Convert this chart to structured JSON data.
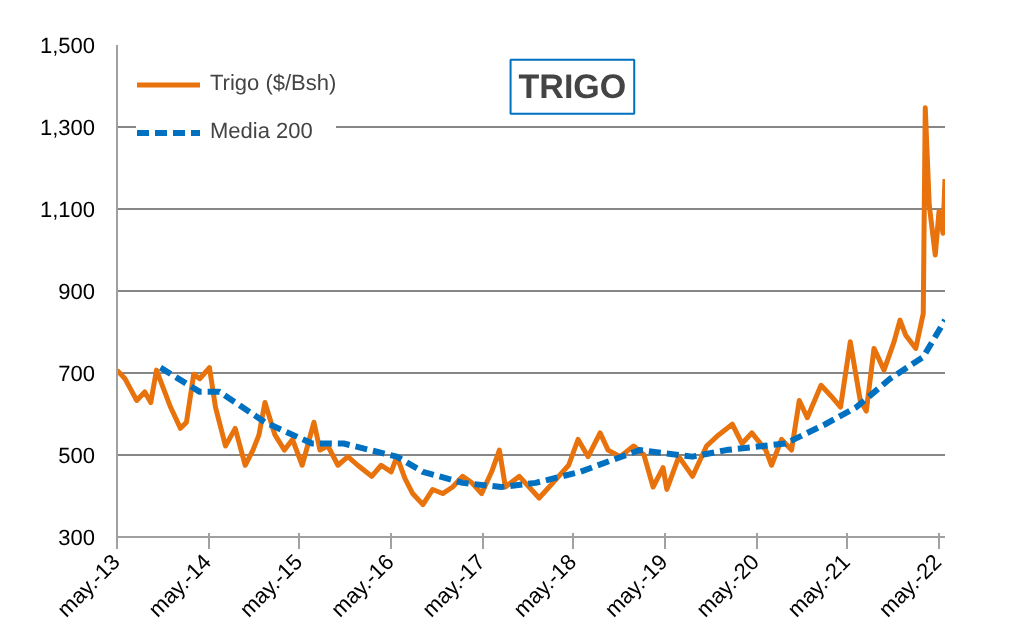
{
  "chart_data": {
    "type": "line",
    "title": "TRIGO",
    "xlim": [
      "2013-05-01",
      "2022-05-27"
    ],
    "xticks": [
      {
        "value": "2013-05-01",
        "label": "may.-13"
      },
      {
        "value": "2014-05-01",
        "label": "may.-14"
      },
      {
        "value": "2015-05-01",
        "label": "may.-15"
      },
      {
        "value": "2016-05-01",
        "label": "may.-16"
      },
      {
        "value": "2017-05-01",
        "label": "may.-17"
      },
      {
        "value": "2018-05-01",
        "label": "may.-18"
      },
      {
        "value": "2019-05-01",
        "label": "may.-19"
      },
      {
        "value": "2020-05-01",
        "label": "may.-20"
      },
      {
        "value": "2021-05-01",
        "label": "may.-21"
      },
      {
        "value": "2022-05-01",
        "label": "may.-22"
      }
    ],
    "ylim": [
      300,
      1500
    ],
    "yticks": [
      300,
      500,
      700,
      900,
      {
        "value": 1100,
        "label": "1,100"
      },
      {
        "value": 1300,
        "label": "1,300"
      },
      {
        "value": 1500,
        "label": "1,500"
      }
    ],
    "grid": "y",
    "legend": "top left",
    "series": [
      {
        "name": "Trigo ($/Bsh)",
        "color": "#e8720c",
        "line_style": "solid",
        "x": [
          "2013-05-01",
          "2013-06-02",
          "2013-06-25",
          "2013-07-19",
          "2013-08-20",
          "2013-09-13",
          "2013-10-06",
          "2013-11-08",
          "2013-12-01",
          "2014-01-10",
          "2014-02-03",
          "2014-03-04",
          "2014-03-28",
          "2014-05-06",
          "2014-05-30",
          "2014-07-09",
          "2014-08-17",
          "2014-09-26",
          "2014-10-27",
          "2014-11-20",
          "2014-12-14",
          "2015-01-23",
          "2015-03-02",
          "2015-04-03",
          "2015-05-12",
          "2015-06-05",
          "2015-06-28",
          "2015-07-22",
          "2015-08-23",
          "2015-10-02",
          "2015-11-11",
          "2015-12-20",
          "2016-02-14",
          "2016-03-23",
          "2016-05-02",
          "2016-05-25",
          "2016-06-26",
          "2016-07-27",
          "2016-09-06",
          "2016-10-15",
          "2016-11-24",
          "2017-01-03",
          "2017-02-12",
          "2017-03-21",
          "2017-04-29",
          "2017-06-08",
          "2017-07-09",
          "2017-08-02",
          "2017-09-27",
          "2017-12-15",
          "2018-01-24",
          "2018-03-03",
          "2018-04-12",
          "2018-05-20",
          "2018-06-29",
          "2018-08-16",
          "2018-09-17",
          "2018-11-04",
          "2018-12-28",
          "2019-02-07",
          "2019-03-16",
          "2019-04-25",
          "2019-05-10",
          "2019-06-27",
          "2019-08-21",
          "2019-10-16",
          "2019-12-03",
          "2020-01-27",
          "2020-03-06",
          "2020-04-14",
          "2020-06-09",
          "2020-07-02",
          "2020-08-11",
          "2020-09-20",
          "2020-10-21",
          "2020-11-22",
          "2021-01-16",
          "2021-02-25",
          "2021-04-04",
          "2021-05-13",
          "2021-06-22",
          "2021-07-16",
          "2021-08-16",
          "2021-09-25",
          "2021-11-04",
          "2021-11-28",
          "2021-12-21",
          "2022-01-30",
          "2022-03-01",
          "2022-03-09",
          "2022-03-25",
          "2022-04-18",
          "2022-05-03",
          "2022-05-19",
          "2022-05-27"
        ],
        "values": [
          707,
          686,
          660,
          633,
          654,
          628,
          707,
          654,
          617,
          565,
          580,
          697,
          686,
          713,
          617,
          522,
          565,
          475,
          512,
          549,
          628,
          549,
          512,
          538,
          475,
          528,
          580,
          512,
          522,
          475,
          496,
          475,
          448,
          475,
          459,
          496,
          443,
          406,
          379,
          416,
          406,
          422,
          448,
          432,
          406,
          459,
          512,
          422,
          448,
          395,
          422,
          448,
          475,
          538,
          496,
          554,
          512,
          496,
          522,
          501,
          422,
          469,
          416,
          496,
          448,
          522,
          549,
          575,
          528,
          554,
          512,
          475,
          538,
          512,
          633,
          591,
          670,
          644,
          617,
          776,
          633,
          607,
          760,
          707,
          776,
          829,
          792,
          760,
          845,
          1347,
          1109,
          988,
          1094,
          1041,
          1173
        ]
      },
      {
        "name": "Media 200",
        "color": "#0070c0",
        "line_style": "dashed",
        "x": [
          "2013-10-22",
          "2014-03-28",
          "2014-06-15",
          "2014-12-14",
          "2015-06-20",
          "2015-10-25",
          "2016-05-25",
          "2016-09-06",
          "2017-02-12",
          "2017-07-17",
          "2017-12-01",
          "2018-05-28",
          "2019-01-21",
          "2019-08-21",
          "2020-01-03",
          "2020-08-27",
          "2021-02-02",
          "2021-06-07",
          "2021-10-19",
          "2022-03-01",
          "2022-05-27"
        ],
        "values": [
          713,
          654,
          654,
          580,
          528,
          528,
          496,
          459,
          432,
          422,
          432,
          459,
          512,
          496,
          512,
          528,
          575,
          617,
          686,
          739,
          829
        ]
      }
    ]
  }
}
